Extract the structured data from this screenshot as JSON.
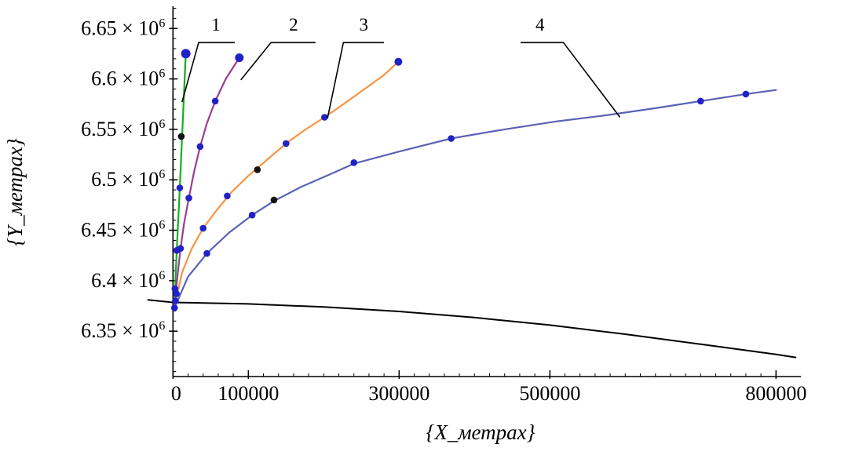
{
  "page": {
    "background": "#ffffff"
  },
  "chart_data": {
    "type": "line",
    "title": "",
    "xlabel": "{X_метрах}",
    "ylabel": "{Y_метрах}",
    "xlim": [
      -42000,
      833000
    ],
    "ylim": [
      6305000,
      6672000
    ],
    "grid": false,
    "legend": null,
    "axis_color": "#000000",
    "x_ticks": [
      {
        "v": 0,
        "label": "0"
      },
      {
        "v": 100000,
        "label": "100000"
      },
      {
        "v": 300000,
        "label": "300000"
      },
      {
        "v": 500000,
        "label": "500000"
      },
      {
        "v": 800000,
        "label": "800000"
      }
    ],
    "x_minor_step": 20000,
    "y_ticks": [
      {
        "v": 6650000,
        "label": "6.65"
      },
      {
        "v": 6600000,
        "label": "6.6"
      },
      {
        "v": 6550000,
        "label": "6.55"
      },
      {
        "v": 6500000,
        "label": "6.5"
      },
      {
        "v": 6450000,
        "label": "6.45"
      },
      {
        "v": 6400000,
        "label": "6.4"
      },
      {
        "v": 6350000,
        "label": "6.35"
      }
    ],
    "y_minor_step": 10000,
    "y_suffix": " × 10",
    "y_exponent": "6",
    "series": [
      {
        "name": "curve-1",
        "label": "1",
        "color": "#13b01e",
        "width": 2.2,
        "points": [
          [
            2000,
            6376000
          ],
          [
            3500,
            6405000
          ],
          [
            5000,
            6430000
          ],
          [
            7000,
            6460000
          ],
          [
            9000,
            6492000
          ],
          [
            11000,
            6525000
          ],
          [
            13000,
            6558000
          ],
          [
            15000,
            6592000
          ],
          [
            17000,
            6625000
          ]
        ]
      },
      {
        "name": "curve-2",
        "label": "2",
        "color": "#993d99",
        "width": 2.2,
        "points": [
          [
            2000,
            6375000
          ],
          [
            6000,
            6405000
          ],
          [
            10000,
            6432000
          ],
          [
            15000,
            6458000
          ],
          [
            21000,
            6482000
          ],
          [
            28000,
            6508000
          ],
          [
            36000,
            6533000
          ],
          [
            45000,
            6556000
          ],
          [
            56000,
            6578000
          ],
          [
            70000,
            6600000
          ],
          [
            88000,
            6621000
          ]
        ]
      },
      {
        "name": "curve-3",
        "label": "3",
        "color": "#f79440",
        "width": 2.2,
        "points": [
          [
            2000,
            6374000
          ],
          [
            12000,
            6408000
          ],
          [
            25000,
            6432000
          ],
          [
            40000,
            6452000
          ],
          [
            58000,
            6470000
          ],
          [
            78000,
            6488000
          ],
          [
            100000,
            6504000
          ],
          [
            125000,
            6520000
          ],
          [
            150000,
            6536000
          ],
          [
            176000,
            6550000
          ],
          [
            201000,
            6562000
          ],
          [
            230000,
            6577000
          ],
          [
            258000,
            6592000
          ],
          [
            280000,
            6604000
          ],
          [
            299000,
            6617000
          ]
        ]
      },
      {
        "name": "curve-4",
        "label": "4",
        "color": "#5a62b4",
        "width": 2.2,
        "points": [
          [
            2000,
            6373000
          ],
          [
            20000,
            6404000
          ],
          [
            45000,
            6427000
          ],
          [
            75000,
            6448000
          ],
          [
            105000,
            6465000
          ],
          [
            134000,
            6479000
          ],
          [
            170000,
            6493000
          ],
          [
            210000,
            6506000
          ],
          [
            240000,
            6516000
          ],
          [
            300000,
            6528000
          ],
          [
            369000,
            6541000
          ],
          [
            440000,
            6550000
          ],
          [
            510000,
            6558000
          ],
          [
            575000,
            6564000
          ],
          [
            640000,
            6571000
          ],
          [
            700000,
            6578000
          ],
          [
            760000,
            6585000
          ],
          [
            800000,
            6589000
          ]
        ]
      },
      {
        "name": "ellipsoid-surface",
        "label": "",
        "color": "#000000",
        "width": 2,
        "points": [
          [
            -33000,
            6381000
          ],
          [
            0,
            6378500
          ],
          [
            100000,
            6377000
          ],
          [
            200000,
            6374000
          ],
          [
            300000,
            6369500
          ],
          [
            400000,
            6363500
          ],
          [
            500000,
            6356000
          ],
          [
            600000,
            6347000
          ],
          [
            700000,
            6337000
          ],
          [
            800000,
            6327000
          ],
          [
            826000,
            6324000
          ]
        ]
      }
    ],
    "markers": [
      {
        "name": "data-point-markers",
        "color": "#2121c8",
        "points": [
          [
            2000,
            6373000
          ],
          [
            3200,
            6380000
          ],
          [
            4600,
            6387000
          ],
          [
            2600,
            6392000
          ],
          [
            5000,
            6430000
          ],
          [
            9000,
            6492000
          ],
          [
            17000,
            6625000,
            6
          ],
          [
            10000,
            6432000
          ],
          [
            21000,
            6482000
          ],
          [
            36000,
            6533000
          ],
          [
            56000,
            6578000
          ],
          [
            88000,
            6621000,
            5.5
          ],
          [
            40000,
            6452000
          ],
          [
            72000,
            6484000
          ],
          [
            150000,
            6536000
          ],
          [
            201000,
            6562000
          ],
          [
            299000,
            6617000,
            5
          ],
          [
            45000,
            6427000
          ],
          [
            105000,
            6465000
          ],
          [
            240000,
            6517000
          ],
          [
            369000,
            6541000
          ],
          [
            700000,
            6578000
          ],
          [
            760000,
            6585000
          ]
        ]
      },
      {
        "name": "black-point-markers",
        "color": "#111111",
        "points": [
          [
            11000,
            6543000
          ],
          [
            112000,
            6510000
          ],
          [
            134000,
            6480000
          ]
        ]
      }
    ],
    "annotations": [
      {
        "text": "1",
        "text_pos": [
          57000,
          6648000
        ],
        "line": [
          [
            12000,
            6577000
          ],
          [
            34000,
            6636000
          ],
          [
            82000,
            6636000
          ]
        ]
      },
      {
        "text": "2",
        "text_pos": [
          160000,
          6648000
        ],
        "line": [
          [
            90000,
            6599000
          ],
          [
            130000,
            6636000
          ],
          [
            189000,
            6636000
          ]
        ]
      },
      {
        "text": "3",
        "text_pos": [
          253000,
          6648000
        ],
        "line": [
          [
            205000,
            6561000
          ],
          [
            226000,
            6636000
          ],
          [
            280000,
            6636000
          ]
        ]
      },
      {
        "text": "4",
        "text_pos": [
          487000,
          6648000
        ],
        "line": [
          [
            593000,
            6562000
          ],
          [
            518000,
            6636000
          ],
          [
            461000,
            6636000
          ]
        ]
      }
    ]
  }
}
